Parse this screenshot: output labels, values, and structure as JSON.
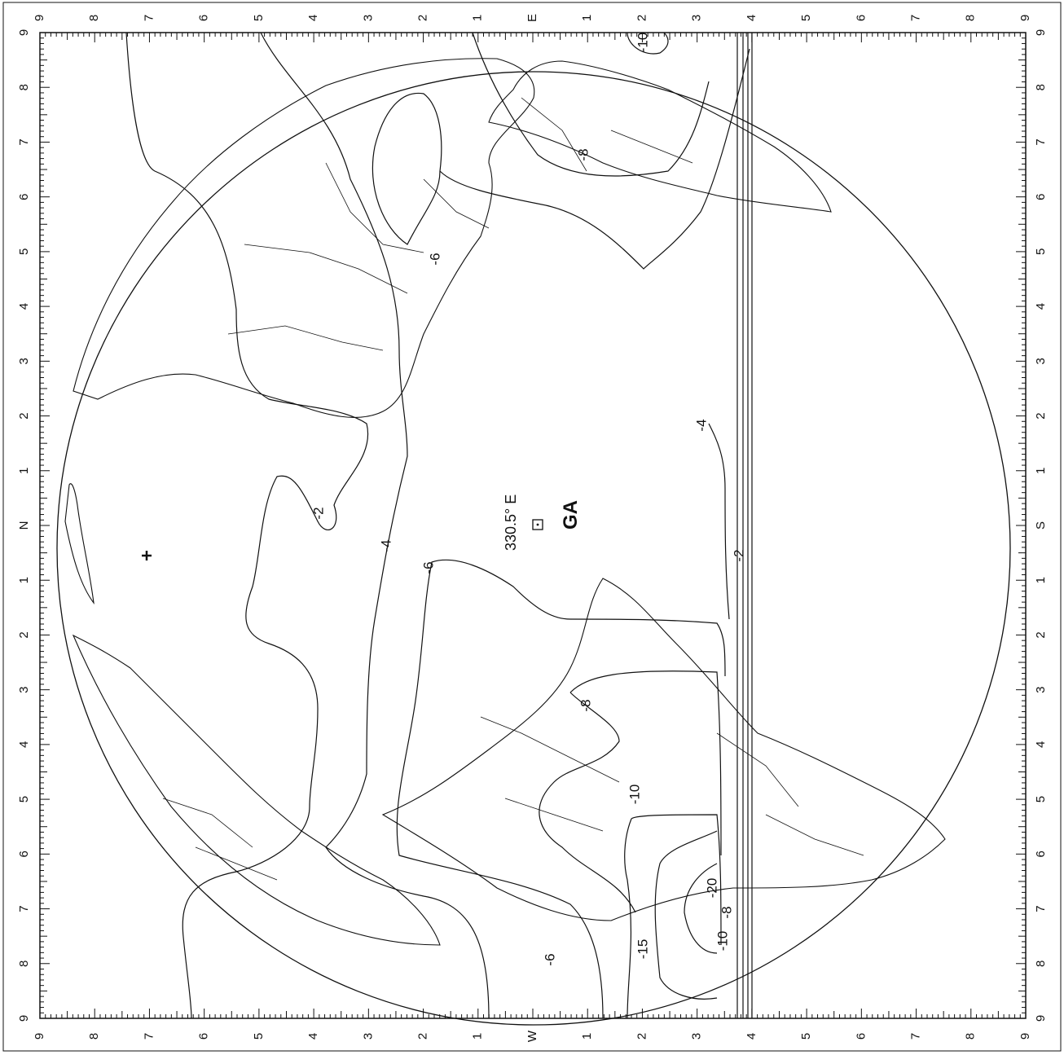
{
  "map": {
    "satellite_longitude": "330.5° E",
    "satellite_id": "GA",
    "colors": {
      "ink": "#111111",
      "background": "#ffffff"
    },
    "scale_labels": {
      "left": [
        "9",
        "8",
        "7",
        "6",
        "5",
        "4",
        "3",
        "2",
        "1",
        "N",
        "1",
        "2",
        "3",
        "4",
        "5",
        "6",
        "7",
        "8",
        "9"
      ],
      "right": [
        "9",
        "8",
        "7",
        "6",
        "5",
        "4",
        "3",
        "2",
        "1",
        "S",
        "1",
        "2",
        "3",
        "4",
        "5",
        "6",
        "7",
        "8",
        "9"
      ],
      "top": [
        "9",
        "8",
        "7",
        "6",
        "5",
        "4",
        "3",
        "2",
        "1",
        "E",
        "1",
        "2",
        "3",
        "4",
        "5",
        "6",
        "7",
        "8",
        "9"
      ],
      "bottom": [
        "9",
        "8",
        "7",
        "6",
        "5",
        "4",
        "3",
        "2",
        "1",
        "W",
        "1",
        "2",
        "3",
        "4",
        "5",
        "6",
        "7",
        "8",
        "9"
      ]
    },
    "contour_labels": [
      "-2",
      "-4",
      "-6",
      "-8",
      "-10",
      "-2",
      "-4",
      "-6",
      "-8",
      "-10",
      "-15",
      "-20",
      "-6",
      "-8",
      "-10"
    ]
  }
}
